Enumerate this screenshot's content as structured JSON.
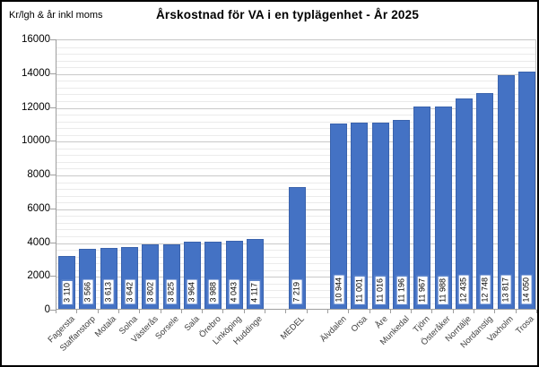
{
  "chart_data": {
    "type": "bar",
    "title": "Årskostnad för VA i en typlägenhet - År 2025",
    "ylabel": "Kr/lgh & år inkl moms",
    "xlabel": "",
    "legend": "none",
    "grid": "horizontal-major-and-minor",
    "ylim": [
      0,
      16000
    ],
    "y_major_unit": 2000,
    "y_minor_unit": 400,
    "y_ticks": [
      0,
      2000,
      4000,
      6000,
      8000,
      10000,
      12000,
      14000,
      16000
    ],
    "bar_color": "#4472C4",
    "bar_border_color": "#3a63ad",
    "value_box_border_color": "#4472C4",
    "slots_total": 23,
    "slots": [
      0,
      1,
      2,
      3,
      4,
      5,
      6,
      7,
      8,
      9,
      11,
      13,
      14,
      15,
      16,
      17,
      18,
      19,
      20,
      21,
      22
    ],
    "categories": [
      "Fagersta",
      "Staffanstorp",
      "Motala",
      "Solna",
      "Västerås",
      "Sorsele",
      "Sala",
      "Örebro",
      "Linköping",
      "Huddinge",
      "MEDEL",
      "Älvdalen",
      "Orsa",
      "Åre",
      "Munkedal",
      "Tjörn",
      "Österåker",
      "Norrtälje",
      "Nordanstig",
      "Vaxholm",
      "Trosa"
    ],
    "values": [
      3110,
      3566,
      3613,
      3642,
      3802,
      3825,
      3964,
      3988,
      4043,
      4117,
      7219,
      10944,
      11001,
      11016,
      11196,
      11967,
      11988,
      12435,
      12748,
      13817,
      14050
    ],
    "value_labels": [
      "3 110",
      "3 566",
      "3 613",
      "3 642",
      "3 802",
      "3 825",
      "3 964",
      "3 988",
      "4 043",
      "4 117",
      "7 219",
      "10 944",
      "11 001",
      "11 016",
      "11 196",
      "11 967",
      "11 988",
      "12 435",
      "12 748",
      "13 817",
      "14 050"
    ]
  }
}
